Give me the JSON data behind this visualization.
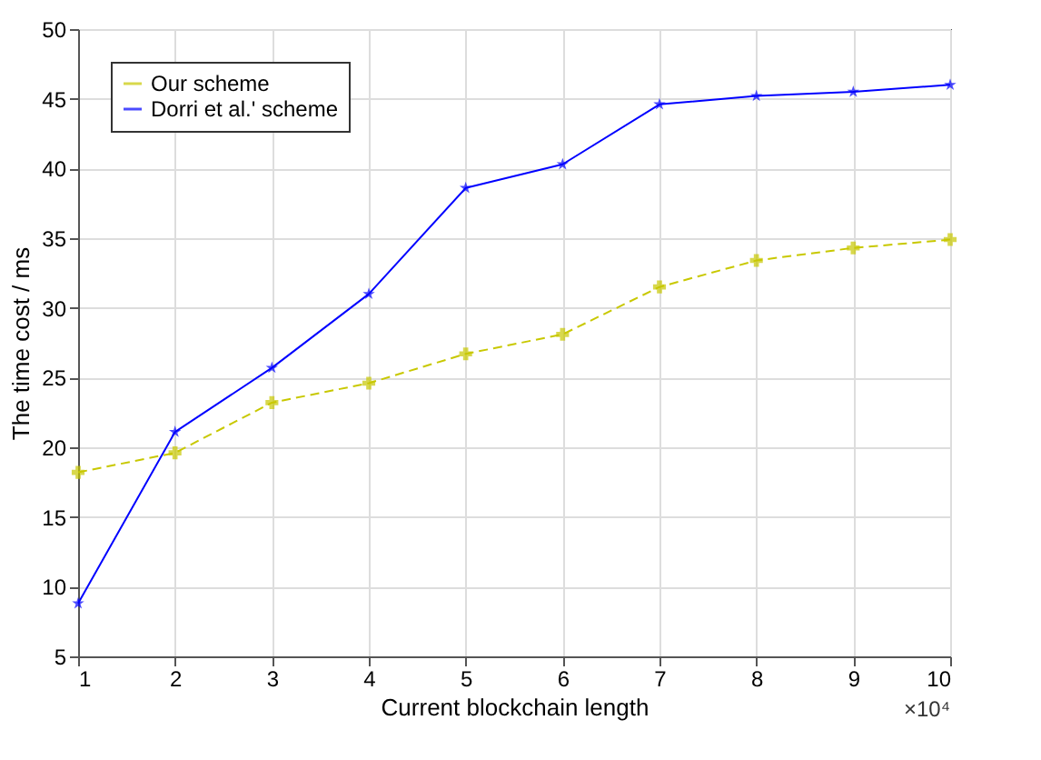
{
  "chart_data": {
    "type": "line",
    "xlabel": "Current blockchain length",
    "ylabel": "The time cost / ms",
    "annotations": [
      "×10⁴"
    ],
    "x": [
      1,
      2,
      3,
      4,
      5,
      6,
      7,
      8,
      9,
      10
    ],
    "series": [
      {
        "name": "Our scheme",
        "color": "#c8c800",
        "marker": "cross",
        "line_style": "dashed",
        "values": [
          18.2,
          19.6,
          23.2,
          24.6,
          26.7,
          28.1,
          31.5,
          33.4,
          34.3,
          34.9
        ]
      },
      {
        "name": "Dorri et al.' scheme",
        "color": "#0000ff",
        "marker": "star",
        "line_style": "solid",
        "values": [
          8.8,
          21.1,
          25.7,
          31.0,
          38.6,
          40.3,
          44.6,
          45.2,
          45.5,
          46.0
        ]
      }
    ],
    "xlim": [
      1,
      10
    ],
    "xticks": [
      1,
      2,
      3,
      4,
      5,
      6,
      7,
      8,
      9,
      10
    ],
    "ylim": [
      5,
      50
    ],
    "yticks": [
      5,
      10,
      15,
      20,
      25,
      30,
      35,
      40,
      45,
      50
    ],
    "grid": true,
    "legend": "top left"
  }
}
